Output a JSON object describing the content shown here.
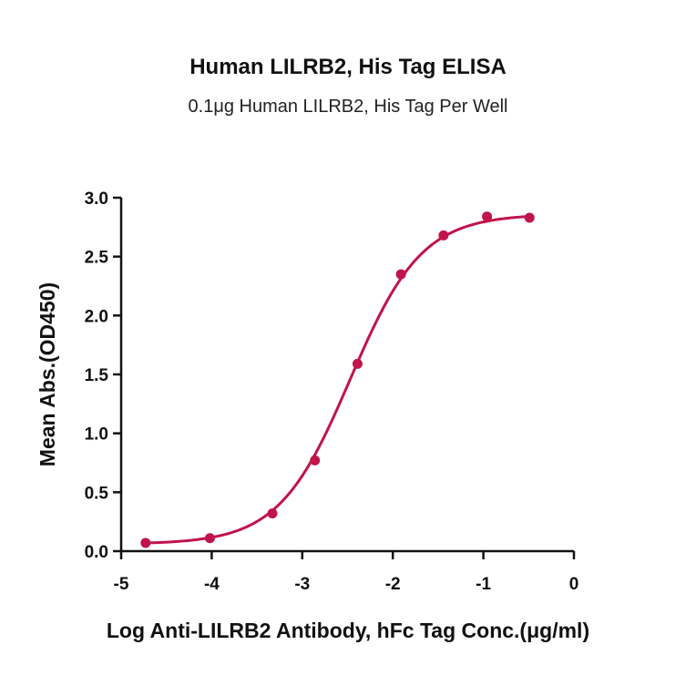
{
  "chart_data": {
    "type": "scatter",
    "title": "Human LILRB2, His Tag ELISA",
    "subtitle": "0.1μg Human LILRB2, His Tag Per Well",
    "xlabel": "Log Anti-LILRB2 Antibody, hFc Tag Conc.(μg/ml)",
    "ylabel": "Mean Abs.(OD450)",
    "xlim": [
      -5,
      0
    ],
    "ylim": [
      0,
      3.0
    ],
    "xticks": [
      "-5",
      "-4",
      "-3",
      "-2",
      "-1",
      "0"
    ],
    "yticks": [
      "0.0",
      "0.5",
      "1.0",
      "1.5",
      "2.0",
      "2.5",
      "3.0"
    ],
    "grid": false,
    "color": "#c0144b",
    "series": [
      {
        "x": [
          -4.73,
          -4.02,
          -3.33,
          -2.86,
          -2.39,
          -1.91,
          -1.44,
          -0.96,
          -0.49
        ],
        "y": [
          0.07,
          0.11,
          0.32,
          0.77,
          1.59,
          2.35,
          2.68,
          2.84,
          2.83
        ]
      }
    ],
    "fit": {
      "model": "4PL sigmoid",
      "bottom": 0.06,
      "top": 2.86,
      "logEC50": -2.47,
      "hill": 1.1
    }
  }
}
